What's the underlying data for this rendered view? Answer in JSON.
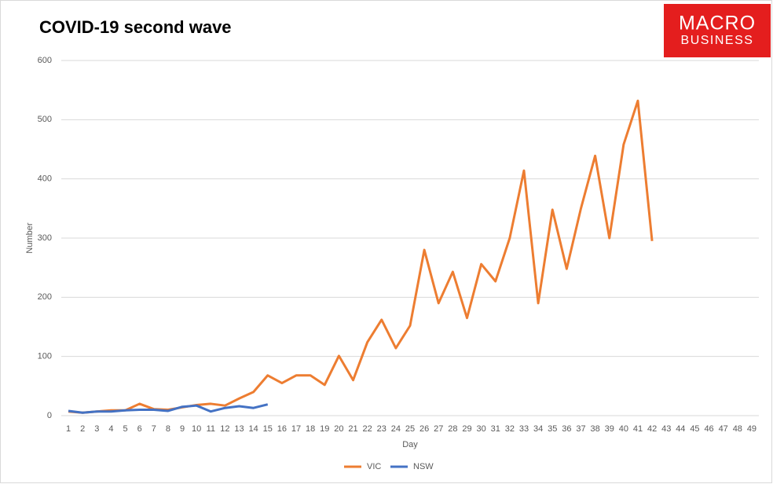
{
  "logo": [
    "MACRO",
    "BUSINESS"
  ],
  "chart_data": {
    "type": "line",
    "title": "COVID-19 second wave",
    "x_label": "Day",
    "y_label": "Number",
    "categories": [
      1,
      2,
      3,
      4,
      5,
      6,
      7,
      8,
      9,
      10,
      11,
      12,
      13,
      14,
      15,
      16,
      17,
      18,
      19,
      20,
      21,
      22,
      23,
      24,
      25,
      26,
      27,
      28,
      29,
      30,
      31,
      32,
      33,
      34,
      35,
      36,
      37,
      38,
      39,
      40,
      41,
      42,
      43,
      44,
      45,
      46,
      47,
      48,
      49
    ],
    "series": [
      {
        "name": "VIC",
        "color": "#ed7d31",
        "values": [
          7,
          5,
          7,
          9,
          9,
          20,
          11,
          10,
          14,
          18,
          20,
          17,
          29,
          40,
          68,
          55,
          68,
          68,
          52,
          101,
          60,
          124,
          162,
          114,
          152,
          280,
          190,
          243,
          165,
          256,
          227,
          300,
          414,
          190,
          348,
          248,
          350,
          439,
          300,
          458,
          532,
          295,
          null,
          null,
          null,
          null,
          null,
          null,
          null
        ]
      },
      {
        "name": "NSW",
        "color": "#4472c4",
        "values": [
          8,
          5,
          7,
          7,
          9,
          10,
          10,
          8,
          15,
          17,
          7,
          13,
          16,
          13,
          19,
          null,
          null,
          null,
          null,
          null,
          null,
          null,
          null,
          null,
          null,
          null,
          null,
          null,
          null,
          null,
          null,
          null,
          null,
          null,
          null,
          null,
          null,
          null,
          null,
          null,
          null,
          null,
          null,
          null,
          null,
          null,
          null,
          null,
          null
        ]
      }
    ],
    "ylim": [
      0,
      600
    ],
    "yticks": [
      0,
      100,
      200,
      300,
      400,
      500,
      600
    ],
    "grid": true,
    "legend": "bottom"
  }
}
